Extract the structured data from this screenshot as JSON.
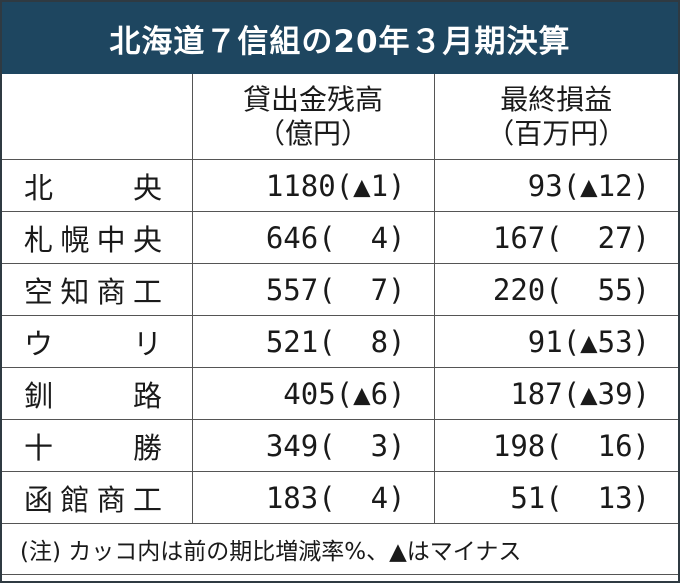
{
  "title": "北海道７信組の20年３月期決算",
  "headers": {
    "loans": "貸出金残高",
    "loans_unit": "（億円）",
    "profit": "最終損益",
    "profit_unit": "（百万円）"
  },
  "rows": [
    {
      "name_chars": [
        "北",
        "央"
      ],
      "loans": "1180(▲1)",
      "profit": "93(▲12)"
    },
    {
      "name_chars": [
        "札",
        "幌",
        "中",
        "央"
      ],
      "loans": "646(  4)",
      "profit": "167(  27)"
    },
    {
      "name_chars": [
        "空",
        "知",
        "商",
        "工"
      ],
      "loans": "557(  7)",
      "profit": "220(  55)"
    },
    {
      "name_chars": [
        "ウ",
        "リ"
      ],
      "loans": "521(  8)",
      "profit": "91(▲53)"
    },
    {
      "name_chars": [
        "釧",
        "路"
      ],
      "loans": "405(▲6)",
      "profit": "187(▲39)"
    },
    {
      "name_chars": [
        "十",
        "勝"
      ],
      "loans": "349(  3)",
      "profit": "198(  16)"
    },
    {
      "name_chars": [
        "函",
        "館",
        "商",
        "工"
      ],
      "loans": "183(  4)",
      "profit": "51(  13)"
    }
  ],
  "note": "(注) カッコ内は前の期比増減率%、▲はマイナス"
}
